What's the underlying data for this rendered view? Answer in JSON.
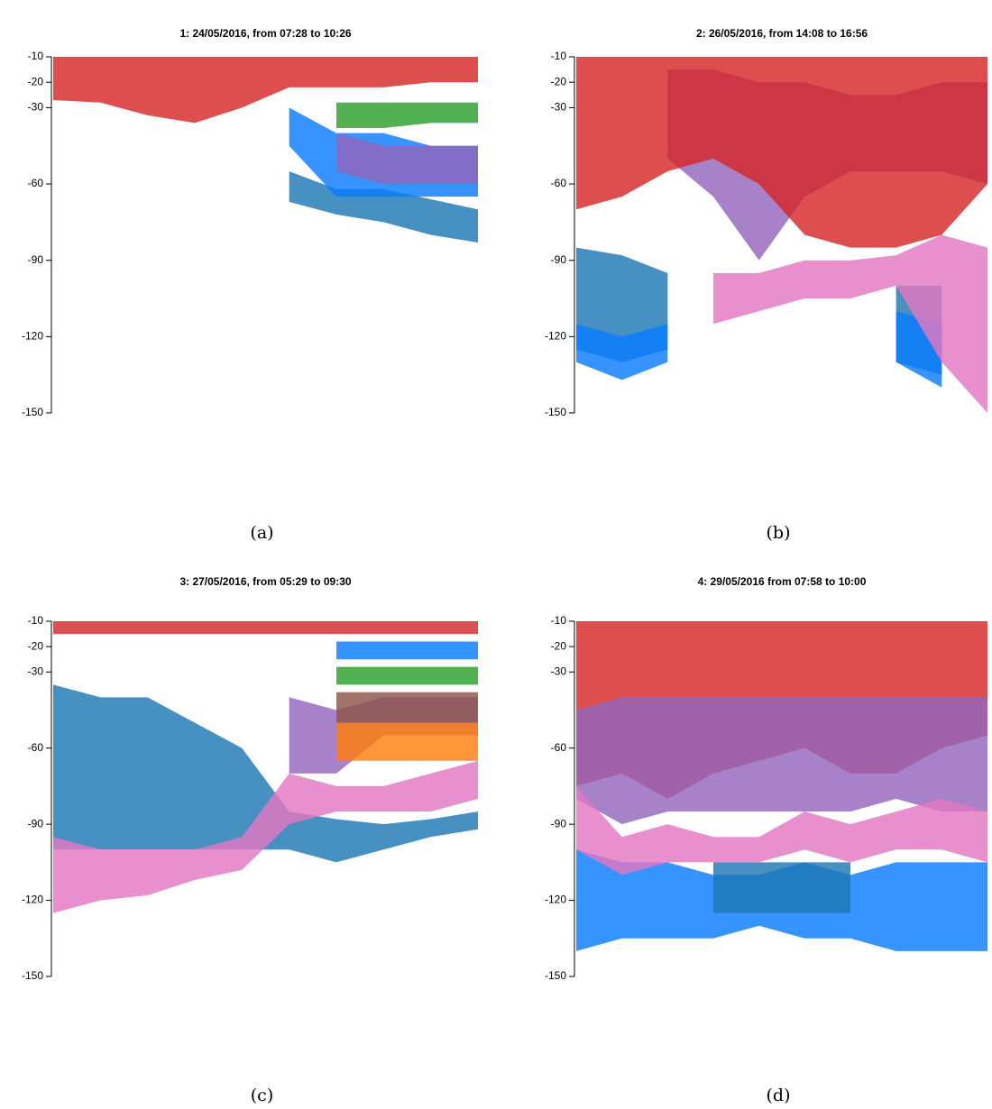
{
  "chart_data": [
    {
      "type": "area",
      "title": "1: 24/05/2016, from 07:28 to 10:26",
      "caption": "(a)",
      "ylim": [
        -150,
        -10
      ],
      "yticks": [
        -10,
        -20,
        -30,
        -60,
        -90,
        -120,
        -150
      ],
      "bands": [
        {
          "color": "#1f77b4",
          "upper": [
            null,
            null,
            null,
            null,
            null,
            -55,
            -62,
            -62,
            -66,
            -70
          ],
          "lower": [
            null,
            null,
            null,
            null,
            null,
            -67,
            -72,
            -75,
            -80,
            -83
          ]
        },
        {
          "color": "#0a7bff",
          "upper": [
            null,
            null,
            null,
            null,
            null,
            -30,
            -40,
            -40,
            -45,
            -45
          ],
          "lower": [
            null,
            null,
            null,
            null,
            null,
            -45,
            -65,
            -65,
            -65,
            -65
          ]
        },
        {
          "color": "#9467bd",
          "upper": [
            null,
            null,
            null,
            null,
            null,
            null,
            -40,
            -45,
            -45,
            -45
          ],
          "lower": [
            null,
            null,
            null,
            null,
            null,
            null,
            -55,
            -60,
            -60,
            -60
          ]
        },
        {
          "color": "#2ca02c",
          "upper": [
            null,
            null,
            null,
            null,
            null,
            null,
            -28,
            -28,
            -28,
            -28
          ],
          "lower": [
            null,
            null,
            null,
            null,
            null,
            null,
            -38,
            -38,
            -36,
            -36
          ]
        },
        {
          "color": "#d62728",
          "upper": [
            -10,
            -10,
            -10,
            -10,
            -10,
            -10,
            -10,
            -10,
            -10,
            -10
          ],
          "lower": [
            -27,
            -28,
            -33,
            -36,
            -30,
            -22,
            -22,
            -22,
            -20,
            -20
          ]
        }
      ]
    },
    {
      "type": "area",
      "title": "2: 26/05/2016, from 14:08 to 16:56",
      "caption": "(b)",
      "ylim": [
        -150,
        -10
      ],
      "yticks": [
        -10,
        -20,
        -30,
        -60,
        -90,
        -120,
        -150
      ],
      "bands": [
        {
          "color": "#9467bd",
          "upper": [
            null,
            null,
            -15,
            -15,
            -20,
            -20,
            -25,
            -25,
            -20,
            -20
          ],
          "lower": [
            null,
            null,
            -50,
            -65,
            -90,
            -65,
            -55,
            -55,
            -55,
            -60
          ]
        },
        {
          "color": "#d62728",
          "upper": [
            -10,
            -10,
            -10,
            -10,
            -10,
            -10,
            -10,
            -10,
            -10,
            -10
          ],
          "lower": [
            -70,
            -65,
            -55,
            -50,
            -60,
            -80,
            -85,
            -85,
            -80,
            -60
          ]
        },
        {
          "color": "#1f77b4",
          "upper": [
            -85,
            -88,
            -95,
            null,
            null,
            null,
            null,
            -100,
            -100,
            null
          ],
          "lower": [
            -125,
            -130,
            -125,
            null,
            null,
            null,
            null,
            -130,
            -135,
            null
          ]
        },
        {
          "color": "#0a7bff",
          "upper": [
            -115,
            -120,
            -115,
            null,
            null,
            null,
            null,
            -110,
            -115,
            null
          ],
          "lower": [
            -130,
            -137,
            -130,
            null,
            null,
            null,
            null,
            -130,
            -140,
            null
          ]
        },
        {
          "color": "#e377c2",
          "upper": [
            null,
            null,
            null,
            -95,
            -95,
            -90,
            -90,
            -88,
            -80,
            -85
          ],
          "lower": [
            null,
            null,
            null,
            -115,
            -110,
            -105,
            -105,
            -100,
            -130,
            -150
          ]
        }
      ]
    },
    {
      "type": "area",
      "title": "3: 27/05/2016, from 05:29 to 09:30",
      "caption": "(c)",
      "ylim": [
        -150,
        -10
      ],
      "yticks": [
        -10,
        -20,
        -30,
        -60,
        -90,
        -120,
        -150
      ],
      "bands": [
        {
          "color": "#1f77b4",
          "upper": [
            -35,
            -40,
            -40,
            -50,
            -60,
            -85,
            -88,
            -90,
            -88,
            -85
          ],
          "lower": [
            -100,
            -100,
            -100,
            -100,
            -100,
            -100,
            -105,
            -100,
            -95,
            -92
          ]
        },
        {
          "color": "#e377c2",
          "upper": [
            -95,
            -100,
            -100,
            -100,
            -95,
            -70,
            -75,
            -75,
            -70,
            -65
          ],
          "lower": [
            -125,
            -120,
            -118,
            -112,
            -108,
            -90,
            -85,
            -85,
            -85,
            -80
          ]
        },
        {
          "color": "#9467bd",
          "upper": [
            null,
            null,
            null,
            null,
            null,
            -40,
            -45,
            -40,
            -40,
            -40
          ],
          "lower": [
            null,
            null,
            null,
            null,
            null,
            -70,
            -70,
            -55,
            -55,
            -55
          ]
        },
        {
          "color": "#8c564b",
          "upper": [
            null,
            null,
            null,
            null,
            null,
            null,
            -38,
            -38,
            -38,
            -38
          ],
          "lower": [
            null,
            null,
            null,
            null,
            null,
            null,
            -50,
            -50,
            -50,
            -50
          ]
        },
        {
          "color": "#ff7f0e",
          "upper": [
            null,
            null,
            null,
            null,
            null,
            null,
            -50,
            -50,
            -50,
            -50
          ],
          "lower": [
            null,
            null,
            null,
            null,
            null,
            null,
            -65,
            -65,
            -65,
            -65
          ]
        },
        {
          "color": "#2ca02c",
          "upper": [
            null,
            null,
            null,
            null,
            null,
            null,
            -28,
            -28,
            -28,
            -28
          ],
          "lower": [
            null,
            null,
            null,
            null,
            null,
            null,
            -35,
            -35,
            -35,
            -35
          ]
        },
        {
          "color": "#0a7bff",
          "upper": [
            null,
            null,
            null,
            null,
            null,
            null,
            -18,
            -18,
            -18,
            -18
          ],
          "lower": [
            null,
            null,
            null,
            null,
            null,
            null,
            -25,
            -25,
            -25,
            -25
          ]
        },
        {
          "color": "#d62728",
          "upper": [
            -10,
            -10,
            -10,
            -10,
            -10,
            -10,
            -10,
            -10,
            -10,
            -10
          ],
          "lower": [
            -15,
            -15,
            -15,
            -15,
            -15,
            -15,
            -15,
            -15,
            -15,
            -15
          ]
        }
      ]
    },
    {
      "type": "area",
      "title": "4: 29/05/2016 from 07:58 to 10:00",
      "caption": "(d)",
      "ylim": [
        -150,
        -10
      ],
      "yticks": [
        -10,
        -20,
        -30,
        -60,
        -90,
        -120,
        -150
      ],
      "bands": [
        {
          "color": "#d62728",
          "upper": [
            -10,
            -10,
            -10,
            -10,
            -10,
            -10,
            -10,
            -10,
            -10,
            -10
          ],
          "lower": [
            -75,
            -70,
            -80,
            -70,
            -65,
            -60,
            -70,
            -70,
            -60,
            -55
          ]
        },
        {
          "color": "#9467bd",
          "upper": [
            -45,
            -40,
            -40,
            -40,
            -40,
            -40,
            -40,
            -40,
            -40,
            -40
          ],
          "lower": [
            -80,
            -90,
            -85,
            -85,
            -85,
            -85,
            -85,
            -80,
            -85,
            -85
          ]
        },
        {
          "color": "#0a7bff",
          "upper": [
            -100,
            -105,
            -105,
            -110,
            -110,
            -105,
            -110,
            -105,
            -105,
            -105
          ],
          "lower": [
            -140,
            -135,
            -135,
            -135,
            -130,
            -135,
            -135,
            -140,
            -140,
            -140
          ]
        },
        {
          "color": "#1f77b4",
          "upper": [
            null,
            null,
            null,
            -105,
            -105,
            -105,
            -105,
            null,
            null,
            null
          ],
          "lower": [
            null,
            null,
            null,
            -125,
            -125,
            -125,
            -125,
            null,
            null,
            null
          ]
        },
        {
          "color": "#e377c2",
          "upper": [
            -75,
            -95,
            -90,
            -95,
            -95,
            -85,
            -90,
            -85,
            -80,
            -85
          ],
          "lower": [
            -100,
            -110,
            -105,
            -105,
            -105,
            -100,
            -105,
            -100,
            -100,
            -105
          ]
        }
      ]
    }
  ]
}
